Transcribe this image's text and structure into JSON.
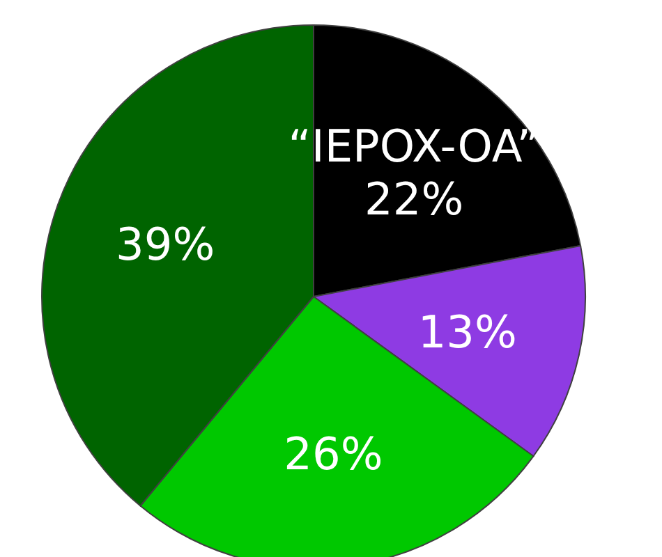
{
  "chart_data": {
    "type": "pie",
    "categories": [
      "“IEPOX-OA”",
      null,
      null,
      null
    ],
    "values": [
      22,
      13,
      26,
      39
    ],
    "value_labels": [
      "22%",
      "13%",
      "26%",
      "39%"
    ],
    "colors": [
      "#000000",
      "#8e3be3",
      "#00c800",
      "#006400"
    ]
  }
}
